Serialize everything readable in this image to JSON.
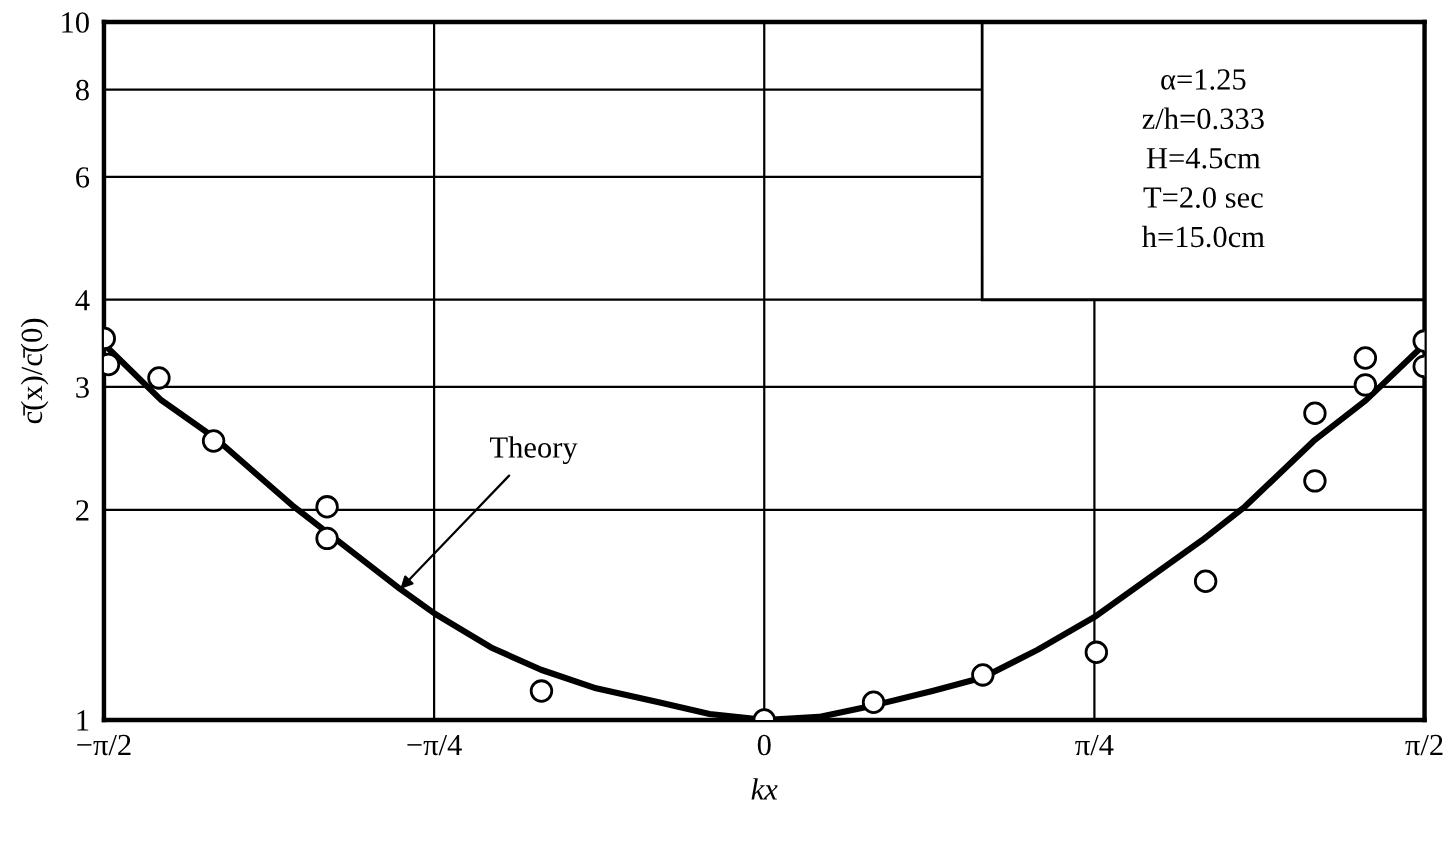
{
  "chart_data": {
    "type": "scatter",
    "xlabel": "kx",
    "ylabel": "c̄(x)/c̄(0)",
    "log": "y",
    "grid": true,
    "xlim": [
      -1.5708,
      1.5708
    ],
    "xticks": [
      {
        "value": -1.5708,
        "label": "−π/2"
      },
      {
        "value": -0.7854,
        "label": "−π/4"
      },
      0,
      {
        "value": 0.7854,
        "label": "π/4"
      },
      {
        "value": 1.5708,
        "label": "π/2"
      }
    ],
    "ylim": [
      1,
      10
    ],
    "yticks": [
      1,
      2,
      3,
      4,
      6,
      8,
      10
    ],
    "series": [
      {
        "type": "line",
        "color": "#000000",
        "marker": "none",
        "line_style": "solid",
        "x": [
          -1.57,
          -1.434,
          -1.305,
          -1.123,
          -1.037,
          -0.866,
          -0.784,
          -0.65,
          -0.531,
          -0.4,
          -0.251,
          -0.13,
          0,
          0.13,
          0.263,
          0.4,
          0.52,
          0.65,
          0.79,
          1.042,
          1.143,
          1.307,
          1.431,
          1.57
        ],
        "values": [
          3.45,
          2.87,
          2.53,
          2.03,
          1.85,
          1.54,
          1.42,
          1.27,
          1.18,
          1.11,
          1.06,
          1.02,
          1.0,
          1.01,
          1.05,
          1.1,
          1.15,
          1.26,
          1.41,
          1.81,
          2.02,
          2.51,
          2.87,
          3.45
        ]
      },
      {
        "color": "#000000",
        "marker": "circle",
        "x": [
          -1.57,
          -1.56,
          -1.44,
          -1.31,
          -1.04,
          -1.04,
          -0.53,
          0,
          0.26,
          0.52,
          0.79,
          1.05,
          1.31,
          1.31,
          1.43,
          1.43,
          1.57,
          1.57
        ],
        "values": [
          3.52,
          3.23,
          3.09,
          2.51,
          2.02,
          1.82,
          1.1,
          1.0,
          1.06,
          1.16,
          1.25,
          1.58,
          2.2,
          2.75,
          3.3,
          3.02,
          3.49,
          3.21
        ]
      }
    ],
    "annotations": [
      {
        "text": "Theory",
        "x": -0.866,
        "y": 1.54
      },
      "α=1.25",
      "z/h=0.333",
      "H=4.5cm",
      "T=2.0 sec",
      "h=15.0cm"
    ]
  }
}
